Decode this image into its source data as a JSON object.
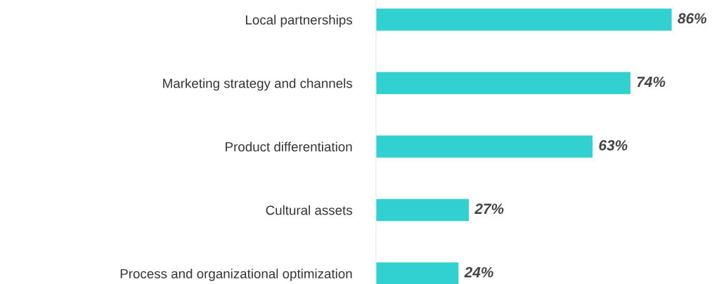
{
  "chart_data": {
    "type": "bar",
    "orientation": "horizontal",
    "categories": [
      "Local partnerships",
      "Marketing strategy and channels",
      "Product differentiation",
      "Cultural assets",
      "Process and organizational optimization"
    ],
    "values": [
      86,
      74,
      63,
      27,
      24
    ],
    "value_labels": [
      "86%",
      "74%",
      "63%",
      "27%",
      "24%"
    ],
    "color": "#31d1d1",
    "grid": false,
    "legend": false
  }
}
